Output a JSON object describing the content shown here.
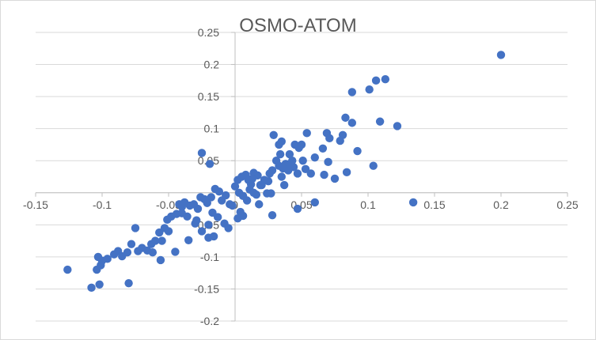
{
  "chart_data": {
    "type": "scatter",
    "title": "OSMO-ATOM",
    "xlabel": "",
    "ylabel": "",
    "xlim": [
      -0.15,
      0.25
    ],
    "ylim": [
      -0.2,
      0.25
    ],
    "x_ticks": [
      "-0.15",
      "-0.1",
      "-0.05",
      "0",
      "0.05",
      "0.1",
      "0.15",
      "0.2",
      "0.25"
    ],
    "y_ticks": [
      "0.25",
      "0.2",
      "0.15",
      "0.1",
      "0.05",
      "0",
      "-0.05",
      "-0.1",
      "-0.15",
      "-0.2"
    ],
    "grid": "horizontal",
    "legend": "none",
    "marker_color": "#4472C4",
    "series": [
      {
        "points": [
          [
            0.2,
            0.215
          ],
          [
            0.113,
            0.177
          ],
          [
            0.106,
            0.175
          ],
          [
            0.101,
            0.161
          ],
          [
            0.088,
            0.157
          ],
          [
            0.109,
            0.111
          ],
          [
            0.122,
            0.104
          ],
          [
            0.088,
            0.109
          ],
          [
            0.083,
            0.117
          ],
          [
            0.081,
            0.09
          ],
          [
            0.079,
            0.081
          ],
          [
            0.069,
            0.093
          ],
          [
            0.071,
            0.085
          ],
          [
            0.066,
            0.069
          ],
          [
            0.06,
            0.055
          ],
          [
            0.054,
            0.093
          ],
          [
            0.053,
            0.037
          ],
          [
            0.05,
            0.075
          ],
          [
            0.048,
            0.07
          ],
          [
            0.045,
            0.075
          ],
          [
            0.041,
            0.06
          ],
          [
            0.038,
            0.045
          ],
          [
            0.035,
            0.08
          ],
          [
            0.033,
            0.075
          ],
          [
            0.029,
            0.09
          ],
          [
            0.092,
            0.065
          ],
          [
            0.104,
            0.042
          ],
          [
            0.084,
            0.032
          ],
          [
            0.075,
            0.022
          ],
          [
            0.07,
            0.048
          ],
          [
            0.067,
            0.028
          ],
          [
            0.057,
            0.03
          ],
          [
            0.047,
            0.03
          ],
          [
            0.043,
            0.05
          ],
          [
            0.04,
            0.035
          ],
          [
            0.037,
            0.012
          ],
          [
            0.034,
            0.06
          ],
          [
            0.031,
            0.05
          ],
          [
            0.028,
            0.035
          ],
          [
            0.035,
            0.025
          ],
          [
            0.025,
            0.018
          ],
          [
            0.02,
            0.012
          ],
          [
            0.017,
            0.027
          ],
          [
            0.014,
            0.031
          ],
          [
            0.013,
            0.022
          ],
          [
            0.01,
            0.02
          ],
          [
            0.008,
            0.028
          ],
          [
            0.005,
            0.025
          ],
          [
            0.002,
            0.02
          ],
          [
            0.0,
            0.01
          ],
          [
            0.003,
            0.0
          ],
          [
            0.006,
            -0.005
          ],
          [
            0.011,
            0.005
          ],
          [
            0.014,
            0.0
          ],
          [
            0.016,
            -0.003
          ],
          [
            0.019,
            0.012
          ],
          [
            0.024,
            -0.001
          ],
          [
            0.027,
            -0.001
          ],
          [
            0.018,
            -0.018
          ],
          [
            0.009,
            -0.012
          ],
          [
            0.004,
            -0.03
          ],
          [
            0.006,
            -0.036
          ],
          [
            -0.002,
            -0.02
          ],
          [
            -0.004,
            -0.018
          ],
          [
            -0.007,
            -0.004
          ],
          [
            -0.01,
            -0.012
          ],
          [
            -0.012,
            0.002
          ],
          [
            -0.015,
            0.006
          ],
          [
            -0.018,
            -0.007
          ],
          [
            -0.021,
            -0.016
          ],
          [
            -0.023,
            -0.01
          ],
          [
            -0.026,
            -0.007
          ],
          [
            -0.028,
            -0.025
          ],
          [
            -0.031,
            -0.018
          ],
          [
            -0.034,
            -0.02
          ],
          [
            -0.036,
            -0.037
          ],
          [
            -0.019,
            0.045
          ],
          [
            -0.025,
            0.062
          ],
          [
            -0.017,
            -0.031
          ],
          [
            -0.013,
            -0.038
          ],
          [
            -0.008,
            -0.048
          ],
          [
            -0.02,
            -0.05
          ],
          [
            -0.029,
            -0.043
          ],
          [
            -0.04,
            -0.022
          ],
          [
            -0.044,
            -0.033
          ],
          [
            -0.042,
            -0.018
          ],
          [
            -0.048,
            -0.037
          ],
          [
            -0.051,
            -0.042
          ],
          [
            -0.055,
            -0.075
          ],
          [
            -0.057,
            -0.062
          ],
          [
            -0.05,
            -0.06
          ],
          [
            -0.053,
            -0.055
          ],
          [
            -0.04,
            -0.032
          ],
          [
            -0.02,
            -0.07
          ],
          [
            -0.025,
            -0.06
          ],
          [
            -0.016,
            -0.068
          ],
          [
            0.06,
            -0.015
          ],
          [
            0.047,
            -0.025
          ],
          [
            0.134,
            -0.015
          ],
          [
            0.028,
            -0.035
          ],
          [
            -0.06,
            -0.075
          ],
          [
            -0.063,
            -0.08
          ],
          [
            -0.066,
            -0.09
          ],
          [
            -0.07,
            -0.086
          ],
          [
            -0.075,
            -0.055
          ],
          [
            -0.078,
            -0.08
          ],
          [
            -0.081,
            -0.093
          ],
          [
            -0.085,
            -0.099
          ],
          [
            -0.088,
            -0.091
          ],
          [
            -0.091,
            -0.096
          ],
          [
            -0.096,
            -0.103
          ],
          [
            -0.1,
            -0.106
          ],
          [
            -0.103,
            -0.1
          ],
          [
            -0.101,
            -0.113
          ],
          [
            -0.104,
            -0.12
          ],
          [
            -0.108,
            -0.148
          ],
          [
            -0.102,
            -0.143
          ],
          [
            -0.126,
            -0.12
          ],
          [
            -0.08,
            -0.141
          ],
          [
            -0.062,
            -0.093
          ],
          [
            -0.073,
            -0.091
          ],
          [
            -0.035,
            -0.074
          ],
          [
            -0.045,
            -0.092
          ],
          [
            -0.056,
            -0.105
          ],
          [
            -0.03,
            -0.048
          ],
          [
            -0.038,
            -0.015
          ],
          [
            -0.005,
            -0.055
          ],
          [
            0.002,
            -0.04
          ],
          [
            0.012,
            0.013
          ],
          [
            0.022,
            0.02
          ],
          [
            0.026,
            0.03
          ],
          [
            0.044,
            0.04
          ],
          [
            0.051,
            0.05
          ],
          [
            0.041,
            0.045
          ],
          [
            0.036,
            0.038
          ],
          [
            0.033,
            0.042
          ]
        ]
      }
    ]
  }
}
